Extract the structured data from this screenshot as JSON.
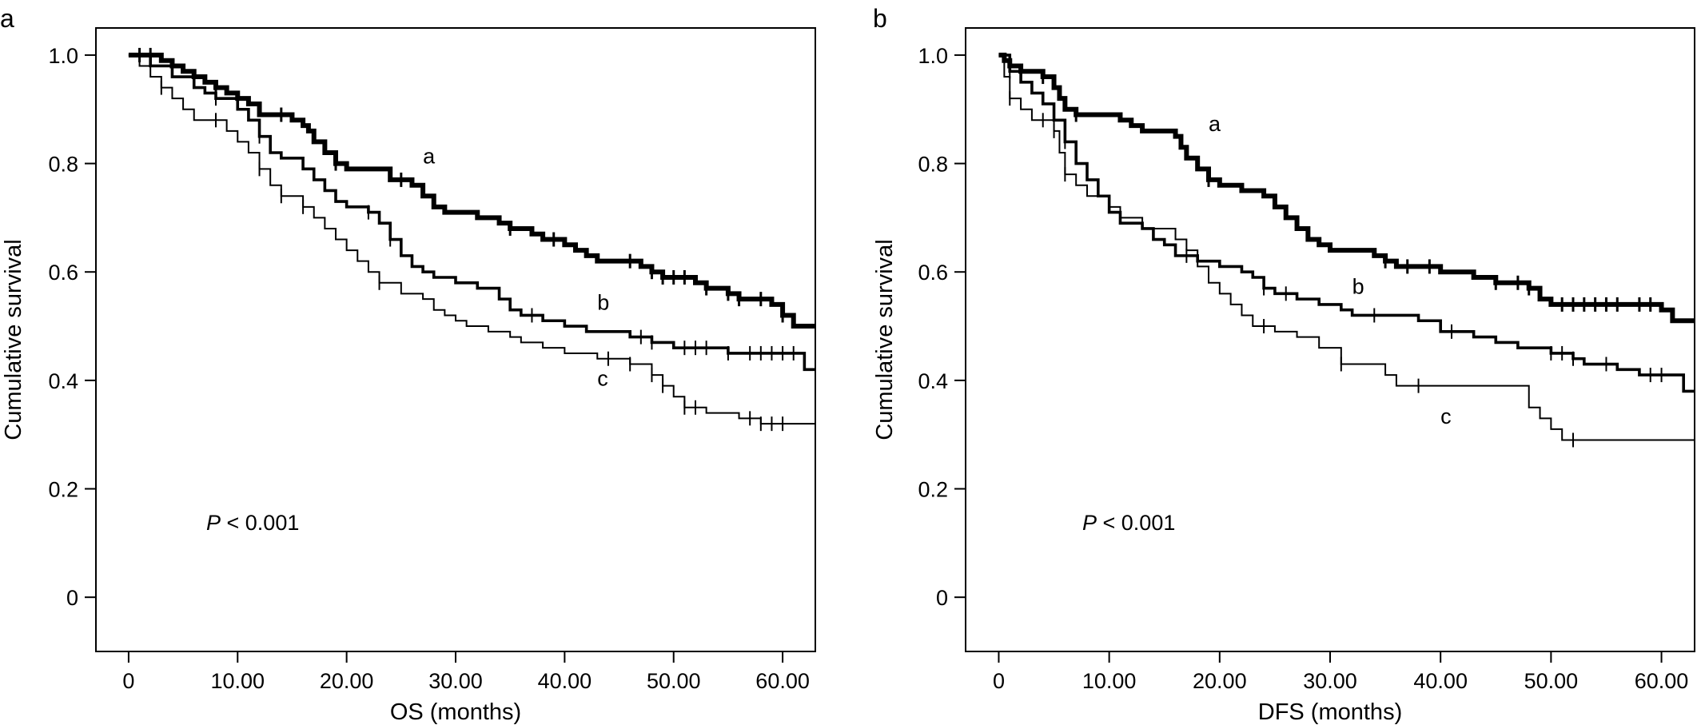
{
  "figure": {
    "type": "kaplan-meier"
  },
  "chart_data": [
    {
      "panel": "a",
      "type": "line",
      "style": "step",
      "xlabel": "OS (months)",
      "ylabel": "Cumulative survival",
      "xlim": [
        -3,
        63
      ],
      "ylim": [
        -0.1,
        1.05
      ],
      "xticks": [
        0,
        10,
        20,
        30,
        40,
        50,
        60
      ],
      "xtick_labels": [
        "0",
        "10.00",
        "20.00",
        "30.00",
        "40.00",
        "50.00",
        "60.00"
      ],
      "yticks": [
        0,
        0.2,
        0.4,
        0.6,
        0.8,
        1.0
      ],
      "ytick_labels": [
        "0",
        "0.2",
        "0.4",
        "0.6",
        "0.8",
        "1.0"
      ],
      "annotation": {
        "italic": "P",
        "text": " < 0.001"
      },
      "series": [
        {
          "name": "a",
          "weight": "heavy",
          "points": [
            [
              0,
              1.0
            ],
            [
              3,
              0.99
            ],
            [
              4,
              0.98
            ],
            [
              5,
              0.97
            ],
            [
              6,
              0.96
            ],
            [
              7,
              0.95
            ],
            [
              8,
              0.94
            ],
            [
              9,
              0.93
            ],
            [
              10,
              0.92
            ],
            [
              11,
              0.91
            ],
            [
              12,
              0.89
            ],
            [
              14,
              0.89
            ],
            [
              15,
              0.88
            ],
            [
              16,
              0.87
            ],
            [
              16.5,
              0.86
            ],
            [
              17,
              0.84
            ],
            [
              18,
              0.82
            ],
            [
              19,
              0.8
            ],
            [
              20,
              0.79
            ],
            [
              24,
              0.77
            ],
            [
              26,
              0.76
            ],
            [
              27,
              0.74
            ],
            [
              28,
              0.72
            ],
            [
              29,
              0.71
            ],
            [
              32,
              0.7
            ],
            [
              34,
              0.69
            ],
            [
              35,
              0.68
            ],
            [
              37,
              0.67
            ],
            [
              38,
              0.66
            ],
            [
              40,
              0.65
            ],
            [
              41,
              0.64
            ],
            [
              42,
              0.63
            ],
            [
              43,
              0.62
            ],
            [
              47,
              0.61
            ],
            [
              48,
              0.6
            ],
            [
              49,
              0.59
            ],
            [
              52,
              0.58
            ],
            [
              53,
              0.57
            ],
            [
              55,
              0.56
            ],
            [
              56,
              0.55
            ],
            [
              59,
              0.54
            ],
            [
              60,
              0.52
            ],
            [
              61,
              0.5
            ],
            [
              63,
              0.5
            ]
          ],
          "censor": [
            1,
            2,
            8,
            14,
            19,
            25,
            35,
            39,
            46,
            48,
            49,
            50,
            51,
            53,
            55,
            56,
            58,
            60
          ]
        },
        {
          "name": "b",
          "weight": "medium",
          "points": [
            [
              0,
              1.0
            ],
            [
              2,
              0.98
            ],
            [
              4,
              0.96
            ],
            [
              6,
              0.94
            ],
            [
              7,
              0.93
            ],
            [
              8,
              0.92
            ],
            [
              10,
              0.9
            ],
            [
              11,
              0.88
            ],
            [
              12,
              0.85
            ],
            [
              13,
              0.82
            ],
            [
              14,
              0.81
            ],
            [
              16,
              0.79
            ],
            [
              17,
              0.77
            ],
            [
              18,
              0.75
            ],
            [
              19,
              0.73
            ],
            [
              20,
              0.72
            ],
            [
              22,
              0.71
            ],
            [
              23,
              0.69
            ],
            [
              24,
              0.66
            ],
            [
              25,
              0.63
            ],
            [
              26,
              0.61
            ],
            [
              27,
              0.6
            ],
            [
              28,
              0.59
            ],
            [
              30,
              0.58
            ],
            [
              32,
              0.57
            ],
            [
              34,
              0.55
            ],
            [
              35,
              0.53
            ],
            [
              36,
              0.52
            ],
            [
              38,
              0.51
            ],
            [
              40,
              0.5
            ],
            [
              42,
              0.49
            ],
            [
              46,
              0.48
            ],
            [
              48,
              0.47
            ],
            [
              50,
              0.46
            ],
            [
              55,
              0.45
            ],
            [
              62,
              0.42
            ],
            [
              63,
              0.42
            ]
          ],
          "censor": [
            8,
            12,
            22,
            24,
            37,
            47,
            48,
            51,
            52,
            53,
            55,
            57,
            58,
            59,
            60,
            61
          ]
        },
        {
          "name": "c",
          "weight": "light",
          "points": [
            [
              0,
              1.0
            ],
            [
              1,
              0.98
            ],
            [
              2,
              0.96
            ],
            [
              3,
              0.94
            ],
            [
              4,
              0.92
            ],
            [
              5,
              0.9
            ],
            [
              6,
              0.88
            ],
            [
              9,
              0.86
            ],
            [
              10,
              0.84
            ],
            [
              11,
              0.82
            ],
            [
              12,
              0.79
            ],
            [
              13,
              0.76
            ],
            [
              14,
              0.74
            ],
            [
              16,
              0.72
            ],
            [
              17,
              0.7
            ],
            [
              18,
              0.68
            ],
            [
              19,
              0.66
            ],
            [
              20,
              0.64
            ],
            [
              21,
              0.62
            ],
            [
              22,
              0.6
            ],
            [
              23,
              0.58
            ],
            [
              25,
              0.56
            ],
            [
              27,
              0.55
            ],
            [
              28,
              0.53
            ],
            [
              29,
              0.52
            ],
            [
              30,
              0.51
            ],
            [
              31,
              0.5
            ],
            [
              33,
              0.49
            ],
            [
              35,
              0.48
            ],
            [
              36,
              0.47
            ],
            [
              38,
              0.46
            ],
            [
              40,
              0.45
            ],
            [
              43,
              0.44
            ],
            [
              46,
              0.43
            ],
            [
              48,
              0.41
            ],
            [
              49,
              0.39
            ],
            [
              50,
              0.37
            ],
            [
              51,
              0.35
            ],
            [
              53,
              0.34
            ],
            [
              56,
              0.33
            ],
            [
              58,
              0.32
            ],
            [
              63,
              0.32
            ]
          ],
          "censor": [
            3,
            8,
            12,
            14,
            16,
            23,
            44,
            46,
            48,
            49,
            51,
            52,
            57,
            58,
            59,
            60
          ]
        }
      ],
      "curve_labels": [
        {
          "text": "a",
          "x": 27,
          "y": 0.8
        },
        {
          "text": "b",
          "x": 43,
          "y": 0.53
        },
        {
          "text": "c",
          "x": 43,
          "y": 0.39
        }
      ]
    },
    {
      "panel": "b",
      "type": "line",
      "style": "step",
      "xlabel": "DFS (months)",
      "ylabel": "Cumulative survival",
      "xlim": [
        -3,
        63
      ],
      "ylim": [
        -0.1,
        1.05
      ],
      "xticks": [
        0,
        10,
        20,
        30,
        40,
        50,
        60
      ],
      "xtick_labels": [
        "0",
        "10.00",
        "20.00",
        "30.00",
        "40.00",
        "50.00",
        "60.00"
      ],
      "yticks": [
        0,
        0.2,
        0.4,
        0.6,
        0.8,
        1.0
      ],
      "ytick_labels": [
        "0",
        "0.2",
        "0.4",
        "0.6",
        "0.8",
        "1.0"
      ],
      "annotation": {
        "italic": "P",
        "text": " < 0.001"
      },
      "series": [
        {
          "name": "a",
          "weight": "heavy",
          "points": [
            [
              0,
              1.0
            ],
            [
              0.5,
              0.99
            ],
            [
              1,
              0.98
            ],
            [
              2,
              0.97
            ],
            [
              4,
              0.96
            ],
            [
              5,
              0.94
            ],
            [
              5.5,
              0.92
            ],
            [
              6,
              0.9
            ],
            [
              7,
              0.89
            ],
            [
              11,
              0.88
            ],
            [
              12,
              0.87
            ],
            [
              13,
              0.86
            ],
            [
              16,
              0.85
            ],
            [
              16.5,
              0.83
            ],
            [
              17,
              0.81
            ],
            [
              18,
              0.79
            ],
            [
              19,
              0.77
            ],
            [
              20,
              0.76
            ],
            [
              22,
              0.75
            ],
            [
              24,
              0.74
            ],
            [
              25,
              0.72
            ],
            [
              26,
              0.7
            ],
            [
              27,
              0.68
            ],
            [
              28,
              0.66
            ],
            [
              29,
              0.65
            ],
            [
              30,
              0.64
            ],
            [
              34,
              0.63
            ],
            [
              35,
              0.62
            ],
            [
              36,
              0.61
            ],
            [
              40,
              0.6
            ],
            [
              43,
              0.59
            ],
            [
              45,
              0.58
            ],
            [
              48,
              0.57
            ],
            [
              49,
              0.55
            ],
            [
              50,
              0.54
            ],
            [
              60,
              0.53
            ],
            [
              61,
              0.51
            ],
            [
              63,
              0.51
            ]
          ],
          "censor": [
            2,
            4,
            7,
            19,
            35,
            37,
            39,
            45,
            47,
            48,
            51,
            52,
            53,
            54,
            55,
            56,
            58,
            59
          ]
        },
        {
          "name": "b",
          "weight": "medium",
          "points": [
            [
              0,
              1.0
            ],
            [
              1,
              0.97
            ],
            [
              2,
              0.95
            ],
            [
              3,
              0.93
            ],
            [
              4,
              0.91
            ],
            [
              5,
              0.88
            ],
            [
              6,
              0.84
            ],
            [
              7,
              0.8
            ],
            [
              8,
              0.77
            ],
            [
              9,
              0.74
            ],
            [
              10,
              0.71
            ],
            [
              11,
              0.69
            ],
            [
              13,
              0.68
            ],
            [
              14,
              0.66
            ],
            [
              15,
              0.65
            ],
            [
              16,
              0.63
            ],
            [
              18,
              0.62
            ],
            [
              20,
              0.61
            ],
            [
              22,
              0.6
            ],
            [
              23,
              0.59
            ],
            [
              24,
              0.57
            ],
            [
              25,
              0.56
            ],
            [
              27,
              0.55
            ],
            [
              29,
              0.54
            ],
            [
              31,
              0.53
            ],
            [
              32,
              0.52
            ],
            [
              38,
              0.51
            ],
            [
              40,
              0.49
            ],
            [
              43,
              0.48
            ],
            [
              45,
              0.47
            ],
            [
              47,
              0.46
            ],
            [
              50,
              0.45
            ],
            [
              52,
              0.44
            ],
            [
              53,
              0.43
            ],
            [
              56,
              0.42
            ],
            [
              58,
              0.41
            ],
            [
              62,
              0.38
            ],
            [
              63,
              0.38
            ]
          ],
          "censor": [
            1,
            6,
            17,
            24,
            26,
            34,
            41,
            50,
            51,
            52,
            55,
            59,
            60
          ]
        },
        {
          "name": "c",
          "weight": "light",
          "points": [
            [
              0,
              1.0
            ],
            [
              0.5,
              0.96
            ],
            [
              1,
              0.92
            ],
            [
              2,
              0.9
            ],
            [
              3,
              0.88
            ],
            [
              5,
              0.86
            ],
            [
              5.5,
              0.82
            ],
            [
              6,
              0.78
            ],
            [
              7,
              0.76
            ],
            [
              8,
              0.74
            ],
            [
              10,
              0.72
            ],
            [
              11,
              0.7
            ],
            [
              13,
              0.68
            ],
            [
              16,
              0.66
            ],
            [
              17,
              0.64
            ],
            [
              18,
              0.61
            ],
            [
              19,
              0.58
            ],
            [
              20,
              0.56
            ],
            [
              21,
              0.54
            ],
            [
              22,
              0.52
            ],
            [
              23,
              0.5
            ],
            [
              25,
              0.49
            ],
            [
              27,
              0.48
            ],
            [
              29,
              0.46
            ],
            [
              31,
              0.43
            ],
            [
              35,
              0.41
            ],
            [
              36,
              0.39
            ],
            [
              48,
              0.35
            ],
            [
              49,
              0.33
            ],
            [
              50,
              0.31
            ],
            [
              51,
              0.29
            ],
            [
              63,
              0.29
            ]
          ],
          "censor": [
            1,
            4,
            5,
            6,
            24,
            31,
            38,
            52
          ]
        }
      ],
      "curve_labels": [
        {
          "text": "a",
          "x": 19,
          "y": 0.86
        },
        {
          "text": "b",
          "x": 32,
          "y": 0.56
        },
        {
          "text": "c",
          "x": 40,
          "y": 0.32
        }
      ]
    }
  ]
}
